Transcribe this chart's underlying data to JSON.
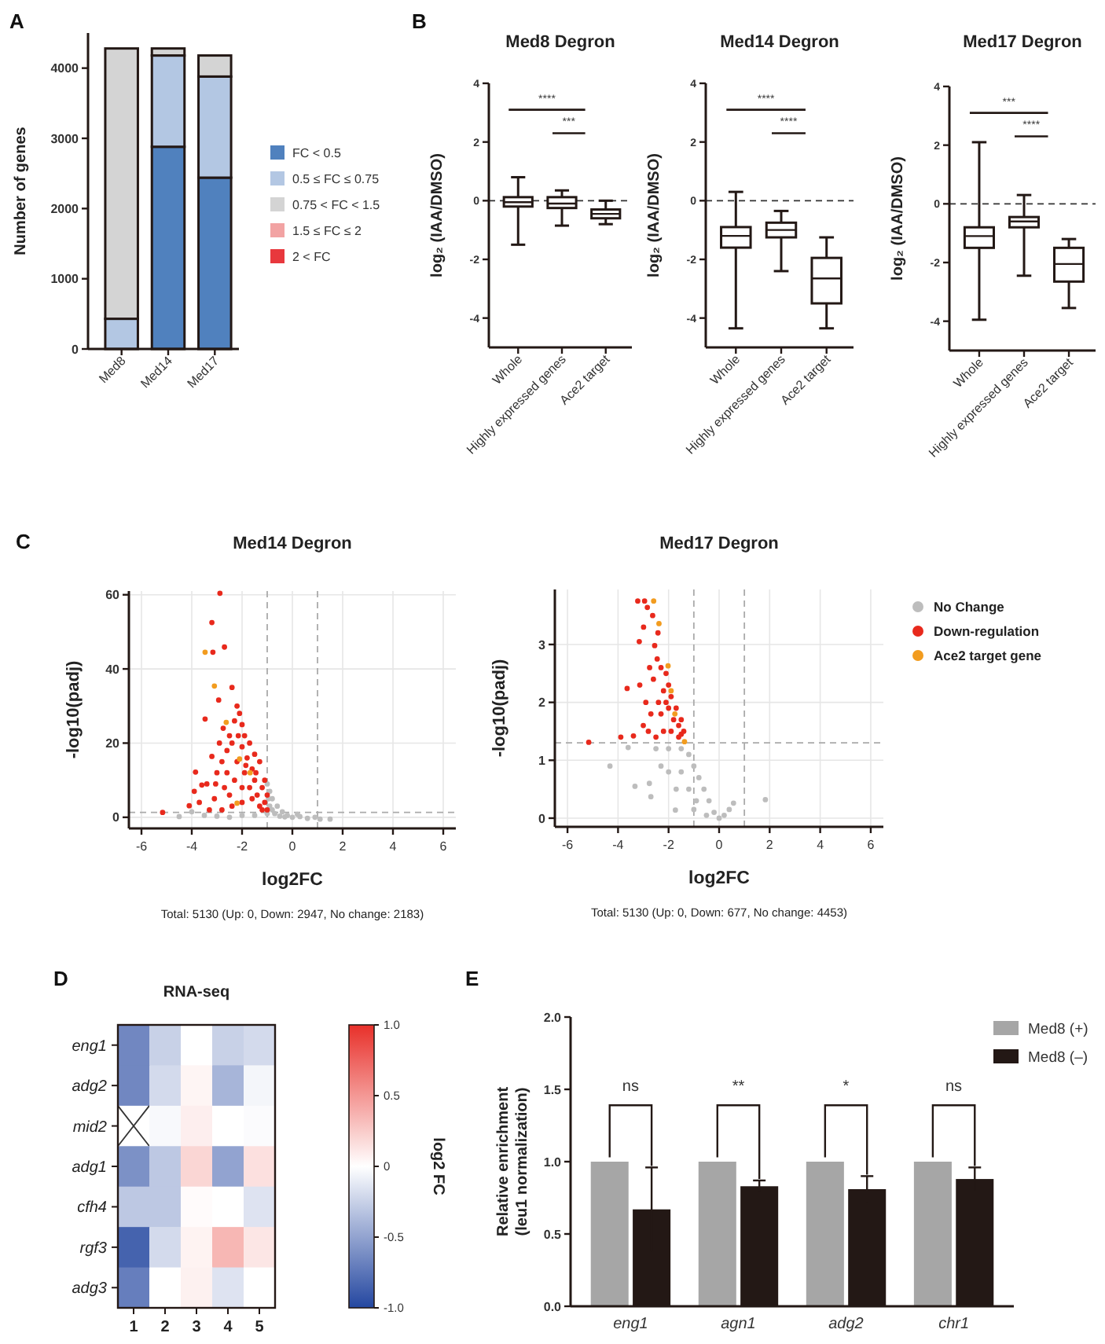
{
  "chart_data": [
    {
      "type": "bar",
      "stacked": true,
      "categories": [
        "Med8",
        "Med14",
        "Med17"
      ],
      "series": [
        {
          "name": "FC < 0.5",
          "color": "#5081be",
          "values": [
            0,
            2880,
            2440
          ]
        },
        {
          "name": "0.5 ≤ FC ≤ 0.75",
          "color": "#b3c7e3",
          "values": [
            430,
            1300,
            1440
          ]
        },
        {
          "name": "0.75 < FC < 1.5",
          "color": "#d4d4d4",
          "values": [
            3850,
            100,
            300
          ]
        },
        {
          "name": "1.5 ≤ FC ≤ 2",
          "color": "#f2a3a3",
          "values": [
            0,
            0,
            0
          ]
        },
        {
          "name": "2 < FC",
          "color": "#e8383d",
          "values": [
            0,
            0,
            0
          ]
        }
      ],
      "ylabel": "Number of genes",
      "ylim": [
        0,
        4500
      ],
      "yticks": [
        0,
        1000,
        2000,
        3000,
        4000
      ],
      "legend": "right",
      "annotations": [
        "A"
      ]
    },
    {
      "type": "box",
      "title": "Med8 Degron",
      "categories": [
        "Whole",
        "Highly expressed genes",
        "Ace2 target"
      ],
      "boxes": [
        {
          "low": -1.5,
          "q1": -0.2,
          "median": -0.05,
          "q3": 0.12,
          "high": 0.8
        },
        {
          "low": -0.85,
          "q1": -0.25,
          "median": -0.1,
          "q3": 0.12,
          "high": 0.35
        },
        {
          "low": -0.8,
          "q1": -0.6,
          "median": -0.45,
          "q3": -0.3,
          "high": 0.0
        }
      ],
      "ylabel": "log₂ (IAA/DMSO)",
      "ylim": [
        -5,
        4
      ],
      "yticks": [
        -4,
        -2,
        0,
        2,
        4
      ],
      "ref_lines": [
        {
          "axis": "y",
          "value": 0,
          "line_style": "dashed"
        }
      ],
      "annotations": [
        "B",
        "****",
        "***"
      ]
    },
    {
      "type": "box",
      "title": "Med14 Degron",
      "categories": [
        "Whole",
        "Highly expressed genes",
        "Ace2 target"
      ],
      "boxes": [
        {
          "low": -4.35,
          "q1": -1.6,
          "median": -1.2,
          "q3": -0.9,
          "high": 0.3
        },
        {
          "low": -2.4,
          "q1": -1.25,
          "median": -1.0,
          "q3": -0.75,
          "high": -0.35
        },
        {
          "low": -4.35,
          "q1": -3.5,
          "median": -2.65,
          "q3": -1.95,
          "high": -1.25
        }
      ],
      "ylabel": "log₂ (IAA/DMSO)",
      "ylim": [
        -5,
        4
      ],
      "yticks": [
        -4,
        -2,
        0,
        2,
        4
      ],
      "ref_lines": [
        {
          "axis": "y",
          "value": 0,
          "line_style": "dashed"
        }
      ],
      "annotations": [
        "****",
        "****"
      ]
    },
    {
      "type": "box",
      "title": "Med17 Degron",
      "categories": [
        "Whole",
        "Highly expressed genes",
        "Ace2 target"
      ],
      "boxes": [
        {
          "low": -3.95,
          "q1": -1.5,
          "median": -1.1,
          "q3": -0.8,
          "high": 2.1
        },
        {
          "low": -2.45,
          "q1": -0.8,
          "median": -0.6,
          "q3": -0.45,
          "high": 0.3
        },
        {
          "low": -3.55,
          "q1": -2.65,
          "median": -2.05,
          "q3": -1.5,
          "high": -1.2
        }
      ],
      "ylabel": "log₂ (IAA/DMSO)",
      "ylim": [
        -5,
        4
      ],
      "yticks": [
        -4,
        -2,
        0,
        2,
        4
      ],
      "ref_lines": [
        {
          "axis": "y",
          "value": 0,
          "line_style": "dashed"
        }
      ],
      "annotations": [
        "***",
        "****"
      ]
    },
    {
      "type": "scatter",
      "title": "Med14 Degron",
      "xlabel": "log2FC",
      "ylabel": "-log10(padj)",
      "xlim": [
        -6.5,
        6.5
      ],
      "xticks": [
        -6,
        -4,
        -2,
        0,
        2,
        4,
        6
      ],
      "ylim": [
        -3,
        61
      ],
      "yticks": [
        0,
        20,
        40,
        60
      ],
      "grid": true,
      "marker": "circle",
      "ref_lines": [
        {
          "axis": "x",
          "value": -1,
          "line_style": "dashed"
        },
        {
          "axis": "x",
          "value": 1,
          "line_style": "dashed"
        },
        {
          "axis": "y",
          "value": 1.3,
          "line_style": "dashed"
        }
      ],
      "series": [
        {
          "color": "#bdbdbd",
          "x": [
            -1.0,
            -0.9,
            -0.8,
            -0.6,
            -0.4,
            -0.2,
            0,
            0.3,
            0.6,
            1.1,
            1.5,
            -0.9,
            -0.7,
            -0.5,
            -1.0,
            -1.5,
            -2.0,
            -2.5,
            -3.0,
            -3.5,
            -4.0,
            -4.5,
            -0.95,
            -0.8,
            0.2,
            -0.3,
            0.9
          ],
          "values": [
            9,
            7,
            5,
            3,
            1.5,
            0.5,
            0,
            0.2,
            -0.3,
            -0.5,
            -0.5,
            3,
            1,
            0.3,
            1,
            0.5,
            0.5,
            0,
            0.3,
            0.5,
            1.5,
            0.2,
            5,
            2,
            0.8,
            0.1,
            0
          ]
        },
        {
          "color": "#e8291c",
          "x": [
            -2.88,
            -3.2,
            -2.7,
            -3.16,
            -2.4,
            -2.93,
            -3.47,
            -3.85,
            -4.1,
            -5.16,
            -3.6,
            -3.2,
            -2.2,
            -2.1,
            -2.3,
            -2.0,
            -2.5,
            -1.9,
            -1.7,
            -2.6,
            -2.8,
            -3.0,
            -1.5,
            -1.3,
            -1.1,
            -1.0,
            -1.0,
            -1.3,
            -1.6,
            -2.0,
            -2.4,
            -2.8,
            -3.1,
            -2.7,
            -2.3,
            -1.9,
            -1.5,
            -1.2,
            -2.2,
            -1.8,
            -2.0,
            -2.4,
            -1.6,
            -2.6,
            -3.4,
            -3.7,
            -2.0,
            -1.4,
            -1.7,
            -2.5,
            -1.2,
            -3.3,
            -3.9,
            -2.75,
            -1.85,
            -2.15,
            -1.45,
            -1.1,
            -2.9,
            -3.05
          ],
          "values": [
            60.4,
            52.5,
            45.9,
            44.5,
            35,
            31.6,
            26.5,
            12.2,
            3.1,
            1.3,
            8.7,
            16.4,
            30,
            28,
            26,
            25,
            22,
            22,
            20,
            18,
            15,
            12,
            17,
            15,
            10,
            6,
            2,
            3,
            5,
            4,
            3,
            2,
            5,
            8,
            10,
            12,
            10,
            8,
            15,
            16,
            19,
            20,
            13,
            12,
            9,
            4,
            8,
            6,
            8,
            6,
            2,
            2,
            7,
            24,
            14,
            22,
            12,
            4,
            20,
            9
          ]
        },
        {
          "color": "#f29c1f",
          "x": [
            -3.47,
            -3.1,
            -2.63,
            -2.1,
            -2.2,
            -1.68
          ],
          "values": [
            44.5,
            35.4,
            25.6,
            15.7,
            3.8,
            12
          ]
        }
      ],
      "annotations": [
        "C",
        "Total: 5130 (Up: 0, Down: 2947, No change: 2183)"
      ]
    },
    {
      "type": "scatter",
      "title": "Med17 Degron",
      "xlabel": "log2FC",
      "ylabel": "-log10(padj)",
      "xlim": [
        -6.5,
        6.5
      ],
      "xticks": [
        -6,
        -4,
        -2,
        0,
        2,
        4,
        6
      ],
      "ylim": [
        -0.15,
        3.95
      ],
      "yticks": [
        0,
        1,
        2,
        3
      ],
      "grid": true,
      "marker": "circle",
      "legend": "right",
      "ref_lines": [
        {
          "axis": "x",
          "value": -1,
          "line_style": "dashed"
        },
        {
          "axis": "x",
          "value": 1,
          "line_style": "dashed"
        },
        {
          "axis": "y",
          "value": 1.3,
          "line_style": "dashed"
        }
      ],
      "series": [
        {
          "name": "No Change",
          "color": "#bdbdbd",
          "x": [
            -4.32,
            -3.33,
            -2.76,
            -2.7,
            -1.73,
            1.83,
            0.57,
            -3.6,
            -2.5,
            -2.0,
            -1.5,
            -1.2,
            -1.0,
            -0.8,
            -0.6,
            -0.4,
            -0.2,
            0,
            0.2,
            0.4,
            -1.5,
            -2.0,
            -1.2,
            -0.9,
            -2.3,
            -1.7,
            -1.0,
            -0.5
          ],
          "values": [
            0.9,
            0.55,
            0.6,
            0.37,
            0.14,
            0.32,
            0.26,
            1.22,
            1.2,
            1.2,
            1.2,
            1.1,
            0.9,
            0.7,
            0.5,
            0.3,
            0.1,
            0,
            0.05,
            0.15,
            0.8,
            0.8,
            0.5,
            0.3,
            0.9,
            0.5,
            0.15,
            0.05
          ]
        },
        {
          "name": "Down-regulation",
          "color": "#e8291c",
          "x": [
            -3.22,
            -2.95,
            -2.84,
            -2.99,
            -3.16,
            -2.55,
            -3.64,
            -3.14,
            -3.89,
            -5.16,
            -3.39,
            -2.63,
            -2.42,
            -2.3,
            -2.1,
            -2.0,
            -1.9,
            -1.7,
            -1.5,
            -1.4,
            -1.6,
            -1.9,
            -2.2,
            -2.5,
            -2.8,
            -2.7,
            -2.4,
            -2.2,
            -1.8,
            -2.0,
            -2.6,
            -2.9,
            -3.0,
            -1.6,
            -2.3,
            -2.1,
            -1.5,
            -2.45,
            -2.75
          ],
          "values": [
            3.75,
            3.75,
            3.64,
            3.3,
            3.05,
            2.98,
            2.24,
            2.3,
            1.4,
            1.31,
            1.42,
            3.5,
            3.2,
            2.6,
            2.5,
            2.3,
            2.1,
            1.9,
            1.7,
            1.5,
            1.4,
            1.5,
            1.5,
            1.4,
            1.5,
            1.8,
            2.0,
            2.2,
            1.7,
            1.9,
            2.4,
            2.0,
            1.6,
            1.6,
            1.8,
            2.0,
            1.45,
            2.75,
            2.6
          ]
        },
        {
          "name": "Ace2 target gene",
          "color": "#f29c1f",
          "x": [
            -2.59,
            -2.38,
            -2.02,
            -1.9,
            -1.75,
            -1.37
          ],
          "values": [
            3.75,
            3.36,
            2.63,
            2.2,
            1.8,
            1.32
          ]
        }
      ],
      "annotations": [
        "Total: 5130 (Up: 0, Down: 677, No change: 4453)"
      ]
    },
    {
      "type": "heatmap",
      "title": "RNA-seq",
      "categories": [
        "1",
        "2",
        "3",
        "4",
        "5"
      ],
      "y_categories": [
        "eng1",
        "adg2",
        "mid2",
        "adg1",
        "cfh4",
        "rgf3",
        "adg3"
      ],
      "cells": [
        [
          -0.65,
          -0.25,
          0,
          -0.25,
          -0.2
        ],
        [
          -0.65,
          -0.2,
          0.05,
          -0.4,
          -0.05
        ],
        [
          null,
          -0.03,
          0.08,
          0,
          -0.02
        ],
        [
          -0.6,
          -0.3,
          0.2,
          -0.5,
          0.15
        ],
        [
          -0.3,
          -0.3,
          0.02,
          0,
          -0.15
        ],
        [
          -0.85,
          -0.2,
          0.06,
          0.35,
          0.12
        ],
        [
          -0.7,
          0,
          0.07,
          -0.15,
          0
        ]
      ],
      "clim": [
        -1,
        1
      ],
      "cticks": [
        {
          "value": -1,
          "label": "-1.0"
        },
        {
          "value": -0.5,
          "label": "-0.5"
        },
        0,
        {
          "value": 0.5,
          "label": "0.5"
        },
        {
          "value": 1,
          "label": "1.0"
        }
      ],
      "clabel": "log2 FC",
      "annotations": [
        "D"
      ]
    },
    {
      "type": "bar",
      "categories": [
        "eng1",
        "agn1",
        "adg2",
        "chr1"
      ],
      "series": [
        {
          "name": "Med8 (+)",
          "color": "#a6a6a6",
          "values": [
            1,
            1,
            1,
            1
          ]
        },
        {
          "name": "Med8 (–)",
          "color": "#231815",
          "values": [
            0.67,
            0.83,
            0.81,
            0.88
          ],
          "errors": [
            0.29,
            0.04,
            0.09,
            0.08
          ]
        }
      ],
      "ylabel": "Relative enrichment (leu1 normalization)",
      "ylim": [
        0,
        2
      ],
      "yticks": [
        {
          "value": 0,
          "label": "0.0"
        },
        {
          "value": 0.5,
          "label": "0.5"
        },
        {
          "value": 1,
          "label": "1.0"
        },
        {
          "value": 1.5,
          "label": "1.5"
        },
        {
          "value": 2,
          "label": "2.0"
        }
      ],
      "legend": "top right",
      "annotations": [
        "E",
        "ns",
        "**",
        "*",
        "ns"
      ]
    }
  ]
}
